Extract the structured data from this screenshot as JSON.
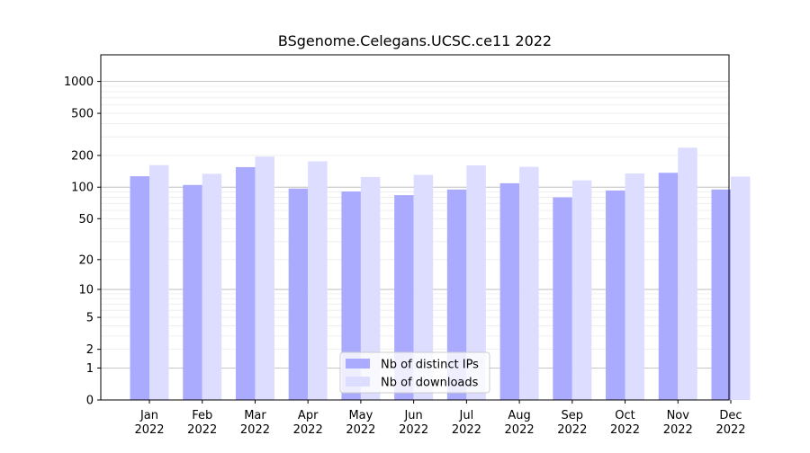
{
  "chart_data": {
    "type": "bar",
    "title": "BSgenome.Celegans.UCSC.ce11 2022",
    "xlabel": "",
    "ylabel": "",
    "scale": "log1p",
    "ylim": [
      0,
      1400
    ],
    "y_ticks": [
      {
        "value": 0,
        "label": "0"
      },
      {
        "value": 1,
        "label": "1"
      },
      {
        "value": 2,
        "label": "2"
      },
      {
        "value": 5,
        "label": "5"
      },
      {
        "value": 10,
        "label": "10"
      },
      {
        "value": 20,
        "label": "20"
      },
      {
        "value": 50,
        "label": "50"
      },
      {
        "value": 100,
        "label": "100"
      },
      {
        "value": 200,
        "label": "200"
      },
      {
        "value": 500,
        "label": "500"
      },
      {
        "value": 1000,
        "label": "1000"
      }
    ],
    "categories": [
      {
        "month": "Jan",
        "year": "2022"
      },
      {
        "month": "Feb",
        "year": "2022"
      },
      {
        "month": "Mar",
        "year": "2022"
      },
      {
        "month": "Apr",
        "year": "2022"
      },
      {
        "month": "May",
        "year": "2022"
      },
      {
        "month": "Jun",
        "year": "2022"
      },
      {
        "month": "Jul",
        "year": "2022"
      },
      {
        "month": "Aug",
        "year": "2022"
      },
      {
        "month": "Sep",
        "year": "2022"
      },
      {
        "month": "Oct",
        "year": "2022"
      },
      {
        "month": "Nov",
        "year": "2022"
      },
      {
        "month": "Dec",
        "year": "2022"
      }
    ],
    "series": [
      {
        "name": "Nb of distinct IPs",
        "color": "#aaaaff",
        "values": [
          127,
          105,
          155,
          97,
          91,
          84,
          95,
          109,
          80,
          93,
          137,
          95
        ]
      },
      {
        "name": "Nb of downloads",
        "color": "#ddddff",
        "values": [
          162,
          134,
          195,
          176,
          125,
          131,
          161,
          156,
          116,
          135,
          237,
          126
        ]
      }
    ],
    "legend_position": "bottom-center",
    "grid": true
  }
}
